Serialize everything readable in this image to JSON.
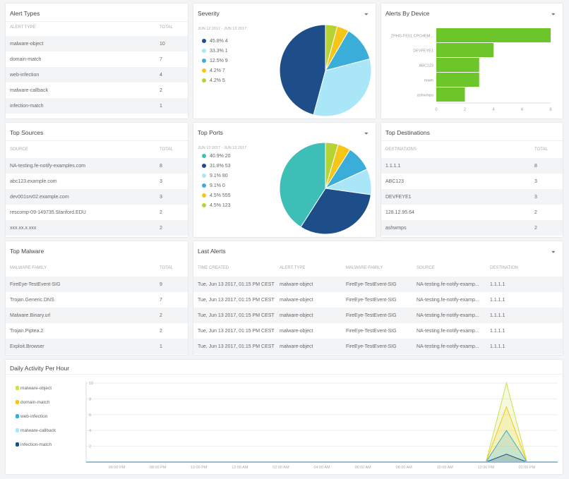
{
  "alert_types": {
    "title": "Alert Types",
    "headers": [
      "Alert Type",
      "Total"
    ],
    "rows": [
      [
        "malware-object",
        "10"
      ],
      [
        "domain-match",
        "7"
      ],
      [
        "web-infection",
        "4"
      ],
      [
        "malware-callback",
        "2"
      ],
      [
        "infection-match",
        "1"
      ]
    ]
  },
  "severity": {
    "title": "Severity",
    "date_range": "JUN 12 2017 - JUN 13 2017",
    "filter_icon": "filter-icon"
  },
  "alerts_by_device": {
    "title": "Alerts By Device"
  },
  "top_sources": {
    "title": "Top Sources",
    "headers": [
      "Source",
      "Total"
    ],
    "rows": [
      [
        "NA-testing.fe-notify-examples.com",
        "8"
      ],
      [
        "abc123.example.com",
        "3"
      ],
      [
        "dev001srv02.example.com",
        "3"
      ],
      [
        "rescomp-09-149735.Stanford.EDU",
        "2"
      ],
      [
        "xxx.xx.x.xxx",
        "2"
      ]
    ]
  },
  "top_ports": {
    "title": "Top Ports",
    "date_range": "JUN 12 2017 - JUN 13 2017"
  },
  "top_destinations": {
    "title": "Top Destinations",
    "headers": [
      "Destinations",
      "Total"
    ],
    "rows": [
      [
        "1.1.1.1",
        "8"
      ],
      [
        "ABC123",
        "3"
      ],
      [
        "DEVFEYE1",
        "3"
      ],
      [
        "128.12.95.64",
        "2"
      ],
      [
        "ashwmps",
        "2"
      ]
    ]
  },
  "top_malware": {
    "title": "Top Malware",
    "headers": [
      "Malware Family",
      "Total"
    ],
    "rows": [
      [
        "FireEye-TestEvent-SIG",
        "9"
      ],
      [
        "Trojan.Generic.DNS",
        "7"
      ],
      [
        "Malware.Binary.url",
        "2"
      ],
      [
        "Trojan.Piptea.2",
        "2"
      ],
      [
        "Exploit.Browser",
        "1"
      ]
    ]
  },
  "last_alerts": {
    "title": "Last Alerts",
    "headers": [
      "Time Created",
      "Alert Type",
      "Malware Family",
      "Source",
      "Destination"
    ],
    "rows": [
      [
        "Tue, Jun 13 2017, 01:15 PM CEST",
        "malware-object",
        "FireEye-TestEvent-SIG",
        "NA-testing.fe-notify-examp...",
        "1.1.1.1"
      ],
      [
        "Tue, Jun 13 2017, 01:15 PM CEST",
        "malware-object",
        "FireEye-TestEvent-SIG",
        "NA-testing.fe-notify-examp...",
        "1.1.1.1"
      ],
      [
        "Tue, Jun 13 2017, 01:15 PM CEST",
        "malware-object",
        "FireEye-TestEvent-SIG",
        "NA-testing.fe-notify-examp...",
        "1.1.1.1"
      ],
      [
        "Tue, Jun 13 2017, 01:15 PM CEST",
        "malware-object",
        "FireEye-TestEvent-SIG",
        "NA-testing.fe-notify-examp...",
        "1.1.1.1"
      ],
      [
        "Tue, Jun 13 2017, 01:15 PM CEST",
        "malware-object",
        "FireEye-TestEvent-SIG",
        "NA-testing.fe-notify-examp...",
        "1.1.1.1"
      ]
    ]
  },
  "daily_activity": {
    "title": "Daily Activity Per Hour"
  },
  "chart_data": [
    {
      "type": "pie",
      "title": "Severity",
      "labels": [
        "4.2% 5",
        "4.2% 7",
        "12.5% 9",
        "33.3% 1",
        "45.8% 4"
      ],
      "values": [
        4.2,
        4.2,
        12.5,
        33.3,
        45.8
      ],
      "colors": [
        "#b5d334",
        "#f5c518",
        "#3aaed8",
        "#a9e6f7",
        "#1d4e89"
      ],
      "legend_order": [
        4,
        3,
        2,
        1,
        0
      ]
    },
    {
      "type": "pie",
      "title": "Top Ports",
      "labels": [
        "4.5% 123",
        "4.5% 555",
        "9.1% 0",
        "9.1% 80",
        "31.8% 53",
        "40.9% 20"
      ],
      "values": [
        4.5,
        4.5,
        9.1,
        9.1,
        31.8,
        40.9
      ],
      "colors": [
        "#b5d334",
        "#f5c518",
        "#3aaed8",
        "#a9e6f7",
        "#1d4e89",
        "#3dbfb8"
      ],
      "legend_order": [
        5,
        4,
        3,
        2,
        1,
        0
      ]
    },
    {
      "type": "bar",
      "title": "Alerts By Device",
      "categories": [
        "ZPHG-FE01.CPCHEM...",
        "DEVFEYE1",
        "ABC123",
        "mwm",
        "ashwmps"
      ],
      "values": [
        8,
        4,
        3,
        3,
        2
      ],
      "xlim": [
        0,
        8
      ],
      "xticks": [
        "0",
        "2",
        "4",
        "6",
        "8"
      ],
      "color": "#6cc62a"
    },
    {
      "type": "area",
      "title": "Daily Activity Per Hour",
      "x_hours": [
        16.5,
        36,
        37,
        38,
        39.5
      ],
      "xlim": [
        16.5,
        39.5
      ],
      "ylim": [
        0,
        10
      ],
      "yticks": [
        "2",
        "4",
        "6",
        "8",
        "10"
      ],
      "xticks": [
        {
          "h": 18,
          "label": "06:00 PM"
        },
        {
          "h": 20,
          "label": "08:00 PM"
        },
        {
          "h": 22,
          "label": "10:00 PM"
        },
        {
          "h": 24,
          "label": "12:00 AM"
        },
        {
          "h": 26,
          "label": "02:00 AM"
        },
        {
          "h": 28,
          "label": "04:00 AM"
        },
        {
          "h": 30,
          "label": "06:00 AM"
        },
        {
          "h": 32,
          "label": "08:00 AM"
        },
        {
          "h": 34,
          "label": "10:00 AM"
        },
        {
          "h": 36,
          "label": "12:00 PM"
        },
        {
          "h": 38,
          "label": "02:00 PM"
        }
      ],
      "series": [
        {
          "name": "malware-object",
          "values": [
            0,
            0,
            10,
            0,
            0
          ],
          "color": "#c9e34a"
        },
        {
          "name": "domain-match",
          "values": [
            0,
            0,
            7,
            0,
            0
          ],
          "color": "#f5c518"
        },
        {
          "name": "web-infection",
          "values": [
            0,
            0,
            4,
            0,
            0
          ],
          "color": "#3aaed8"
        },
        {
          "name": "malware-callback",
          "values": [
            0,
            0,
            2,
            0,
            0
          ],
          "color": "#a9e6f7"
        },
        {
          "name": "infection-match",
          "values": [
            0,
            0,
            1,
            0,
            0
          ],
          "color": "#1d4e89"
        }
      ]
    }
  ]
}
